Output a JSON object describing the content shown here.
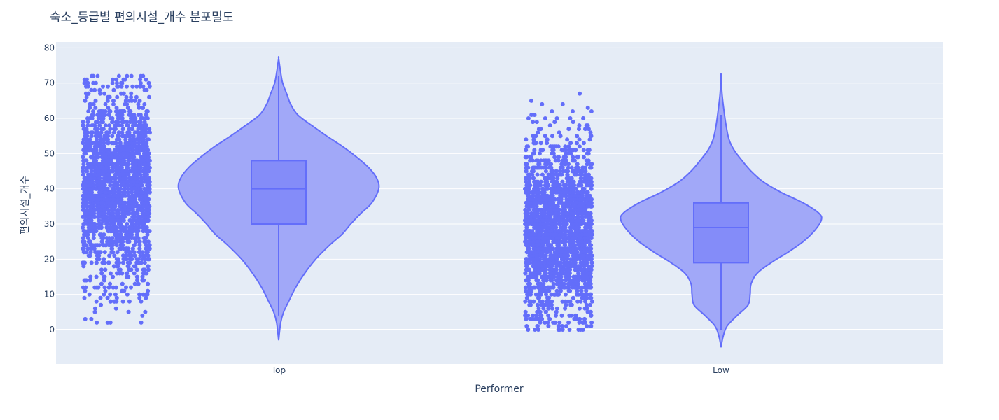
{
  "chart_data": {
    "type": "violin",
    "title": "숙소_등급별 편의시설_개수 분포밀도",
    "xlabel": "Performer",
    "ylabel": "편의시설_개수",
    "categories": [
      "Top",
      "Low"
    ],
    "ylim": [
      -10,
      80
    ],
    "yticks": [
      0,
      10,
      20,
      30,
      40,
      50,
      60,
      70,
      80
    ],
    "grid": true,
    "legend": "none",
    "colors": {
      "plot_background": "#e5ecf6",
      "grid": "#ffffff",
      "trace": "#636efa",
      "violin_fill": "#a1a8f8",
      "box_fill": "#848cf9",
      "text": "#2a3f5f"
    },
    "violins": [
      {
        "category": "Top",
        "box": {
          "q1": 30,
          "median": 40,
          "q3": 48
        },
        "whiskers": [
          4,
          72
        ],
        "kde_extent": [
          -3,
          77
        ],
        "density_profile": [
          [
            -3,
            0.0
          ],
          [
            2,
            0.02
          ],
          [
            5,
            0.05
          ],
          [
            8,
            0.1
          ],
          [
            12,
            0.17
          ],
          [
            16,
            0.26
          ],
          [
            20,
            0.37
          ],
          [
            24,
            0.51
          ],
          [
            27,
            0.63
          ],
          [
            30,
            0.72
          ],
          [
            33,
            0.82
          ],
          [
            36,
            0.93
          ],
          [
            40,
            1.0
          ],
          [
            43,
            0.98
          ],
          [
            46,
            0.9
          ],
          [
            49,
            0.78
          ],
          [
            52,
            0.64
          ],
          [
            55,
            0.48
          ],
          [
            58,
            0.33
          ],
          [
            61,
            0.19
          ],
          [
            64,
            0.12
          ],
          [
            67,
            0.08
          ],
          [
            70,
            0.04
          ],
          [
            73,
            0.02
          ],
          [
            77,
            0.0
          ]
        ],
        "points": {
          "count": 2000,
          "min": 2,
          "max": 72,
          "median": 40,
          "q1": 30,
          "q3": 48
        }
      },
      {
        "category": "Low",
        "box": {
          "q1": 19,
          "median": 29,
          "q3": 36
        },
        "whiskers": [
          0,
          61
        ],
        "kde_extent": [
          -5,
          72
        ],
        "density_profile": [
          [
            -5,
            0.0
          ],
          [
            -2,
            0.02
          ],
          [
            1,
            0.06
          ],
          [
            4,
            0.16
          ],
          [
            7,
            0.27
          ],
          [
            10,
            0.29
          ],
          [
            13,
            0.3
          ],
          [
            16,
            0.36
          ],
          [
            19,
            0.5
          ],
          [
            22,
            0.67
          ],
          [
            25,
            0.82
          ],
          [
            28,
            0.93
          ],
          [
            31,
            1.0
          ],
          [
            33,
            0.98
          ],
          [
            36,
            0.82
          ],
          [
            39,
            0.6
          ],
          [
            42,
            0.42
          ],
          [
            45,
            0.3
          ],
          [
            48,
            0.21
          ],
          [
            51,
            0.13
          ],
          [
            54,
            0.08
          ],
          [
            58,
            0.05
          ],
          [
            62,
            0.03
          ],
          [
            67,
            0.01
          ],
          [
            72,
            0.0
          ]
        ],
        "points": {
          "count": 2000,
          "min": 0,
          "max": 67,
          "median": 29,
          "q1": 19,
          "q3": 36
        }
      }
    ]
  }
}
